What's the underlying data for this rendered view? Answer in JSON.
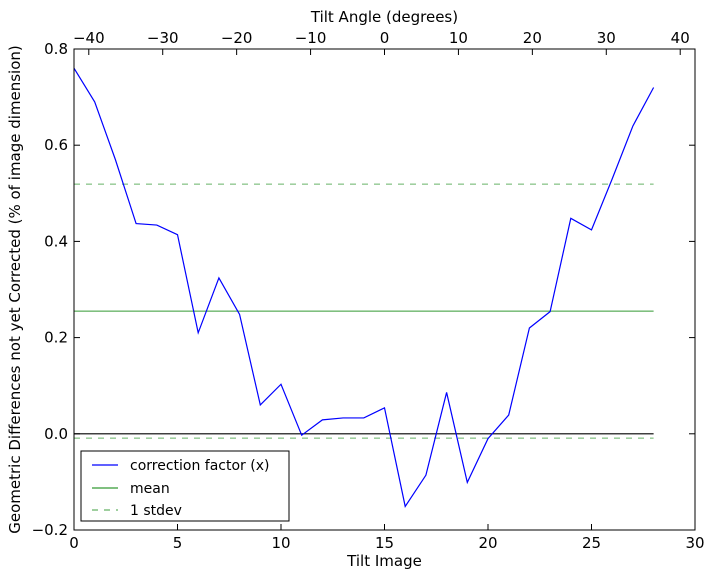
{
  "chart_data": {
    "type": "line",
    "xlabel": "Tilt Image",
    "ylabel": "Geometric Differences not yet Corrected (% of image dimension)",
    "top_xlabel": "Tilt Angle (degrees)",
    "xlim": [
      0,
      30
    ],
    "ylim": [
      -0.2,
      0.8
    ],
    "top_xlim": [
      -42,
      42
    ],
    "x_ticks": [
      0,
      5,
      10,
      15,
      20,
      25,
      30
    ],
    "y_ticks": [
      -0.2,
      0.0,
      0.2,
      0.4,
      0.6,
      0.8
    ],
    "y_tick_labels": [
      "−0.2",
      "0.0",
      "0.2",
      "0.4",
      "0.6",
      "0.8"
    ],
    "top_x_ticks": [
      -40,
      -30,
      -20,
      -10,
      0,
      10,
      20,
      30,
      40
    ],
    "top_x_tick_labels": [
      "−40",
      "−30",
      "−20",
      "−10",
      "0",
      "10",
      "20",
      "30",
      "40"
    ],
    "grid": false,
    "legend_position": "lower-left",
    "series": [
      {
        "name": "correction factor (x)",
        "color": "#0000ff",
        "style": "solid",
        "x": [
          0,
          1,
          2,
          3,
          4,
          5,
          6,
          7,
          8,
          9,
          10,
          11,
          12,
          13,
          14,
          15,
          16,
          17,
          18,
          19,
          20,
          21,
          22,
          23,
          24,
          25,
          26,
          27,
          28
        ],
        "y": [
          0.76,
          0.69,
          0.57,
          0.437,
          0.434,
          0.414,
          0.21,
          0.324,
          0.248,
          0.06,
          0.103,
          -0.003,
          0.029,
          0.033,
          0.033,
          0.054,
          -0.151,
          -0.086,
          0.086,
          -0.101,
          -0.01,
          0.039,
          0.22,
          0.254,
          0.448,
          0.424,
          0.53,
          0.64,
          0.72
        ]
      },
      {
        "name": "mean",
        "color": "#008000",
        "style": "solid",
        "x": [
          0,
          28
        ],
        "y": [
          0.255,
          0.255
        ]
      },
      {
        "name": "1 stdev",
        "color": "#008000",
        "style": "dashed",
        "x": [
          0,
          28
        ],
        "y": [
          0.519,
          0.519
        ],
        "x2": [
          0,
          28
        ],
        "y2": [
          -0.009,
          -0.009
        ]
      }
    ],
    "reference_line": {
      "y": 0.0,
      "x": [
        0,
        28
      ],
      "color": "#000000"
    }
  }
}
